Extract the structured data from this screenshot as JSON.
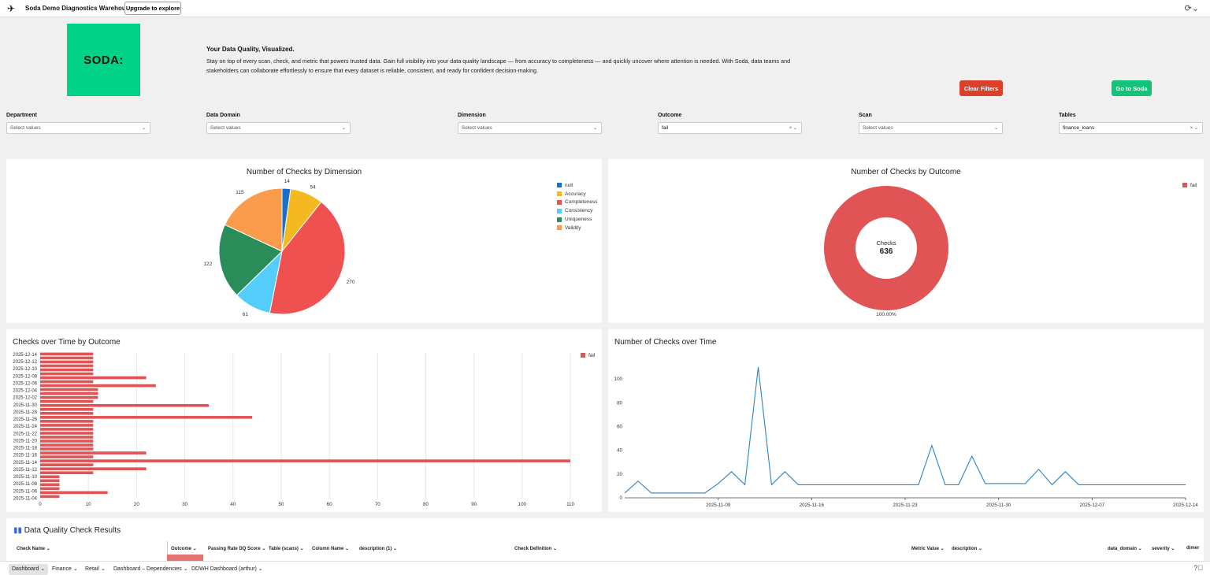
{
  "header": {
    "title": "Soda Demo Diagnostics Warehouse",
    "upgrade_label": "Upgrade to explore",
    "refresh_icon": "refresh-icon"
  },
  "intro": {
    "logo_text": "SODA:",
    "title": "Your Data Quality, Visualized.",
    "text": "Stay on top of every scan, check, and metric that powers trusted data. Gain full visibility into your data quality landscape — from accuracy to completeness — and quickly uncover where attention is needed. With Soda, data teams and stakeholders can collaborate effortlessly to ensure that every dataset is reliable, consistent, and ready for confident decision-making."
  },
  "buttons": {
    "clear_filters": "Clear Filters",
    "go_to_soda": "Go to Soda"
  },
  "filters": [
    {
      "label": "Department",
      "value": "Select values"
    },
    {
      "label": "Data Domain",
      "value": "Select values"
    },
    {
      "label": "Dimension",
      "value": "Select values"
    },
    {
      "label": "Outcome",
      "value": "fail"
    },
    {
      "label": "Scan",
      "value": "Select values"
    },
    {
      "label": "Tables",
      "value": "finance_loans"
    }
  ],
  "colors": {
    "fail": "#e05456",
    "line": "#2f84c2",
    "clear_button": "#d9412c",
    "soda_button": "#12c37a",
    "logo_bg": "#00d387"
  },
  "chart_data": [
    {
      "type": "pie",
      "title": "Number of Checks by Dimension",
      "categories": [
        "null",
        "Accuracy",
        "Completeness",
        "Consistency",
        "Uniqueness",
        "Validity"
      ],
      "values": [
        14,
        54,
        270,
        61,
        122,
        115
      ],
      "colors": [
        "#1a6fc9",
        "#f5b820",
        "#ee5150",
        "#55cdfb",
        "#2a8c59",
        "#fb9b4c"
      ],
      "legend": "top-right"
    },
    {
      "type": "pie",
      "title": "Number of Checks by Outcome",
      "categories": [
        "fail"
      ],
      "values": [
        636
      ],
      "center_label": "Checks",
      "center_value": "636",
      "slice_label": "100.00%",
      "legend": "top-right"
    },
    {
      "type": "bar",
      "title": "Checks over Time by Outcome",
      "orientation": "horizontal",
      "series": [
        {
          "name": "fail",
          "values": [
            11,
            11,
            11,
            11,
            11,
            11,
            22,
            11,
            24,
            12,
            12,
            12,
            11,
            35,
            11,
            11,
            44,
            11,
            11,
            11,
            11,
            11,
            11,
            11,
            11,
            22,
            11,
            110,
            11,
            22,
            11,
            4,
            4,
            4,
            4,
            14,
            4
          ]
        }
      ],
      "y_tick_labels": [
        "2025-12-14",
        "2025-12-12",
        "2025-12-10",
        "2025-12-08",
        "2025-12-06",
        "2025-12-04",
        "2025-12-02",
        "2025-11-30",
        "2025-11-28",
        "2025-11-26",
        "2025-11-24",
        "2025-11-22",
        "2025-11-20",
        "2025-11-18",
        "2025-11-16",
        "2025-11-14",
        "2025-11-12",
        "2025-11-10",
        "2025-11-08",
        "2025-11-06",
        "2025-11-04"
      ],
      "xlim": [
        0,
        110
      ],
      "xticks": [
        0,
        10,
        20,
        30,
        40,
        50,
        60,
        70,
        80,
        90,
        100,
        110
      ],
      "grid": true,
      "legend": "top-right"
    },
    {
      "type": "line",
      "title": "Number of Checks over Time",
      "x": [
        "2025-11-02",
        "2025-11-03",
        "2025-11-04",
        "2025-11-05",
        "2025-11-06",
        "2025-11-07",
        "2025-11-08",
        "2025-11-09",
        "2025-11-10",
        "2025-11-11",
        "2025-11-12",
        "2025-11-13",
        "2025-11-14",
        "2025-11-15",
        "2025-11-16",
        "2025-11-17",
        "2025-11-18",
        "2025-11-19",
        "2025-11-20",
        "2025-11-21",
        "2025-11-22",
        "2025-11-23",
        "2025-11-24",
        "2025-11-25",
        "2025-11-26",
        "2025-11-27",
        "2025-11-28",
        "2025-11-29",
        "2025-11-30",
        "2025-12-01",
        "2025-12-02",
        "2025-12-03",
        "2025-12-04",
        "2025-12-05",
        "2025-12-06",
        "2025-12-07",
        "2025-12-08",
        "2025-12-09",
        "2025-12-10",
        "2025-12-11",
        "2025-12-12",
        "2025-12-13",
        "2025-12-14"
      ],
      "y": [
        4,
        14,
        4,
        4,
        4,
        4,
        4,
        12,
        22,
        11,
        110,
        11,
        22,
        11,
        11,
        11,
        11,
        11,
        11,
        11,
        11,
        11,
        11,
        44,
        11,
        11,
        35,
        12,
        12,
        12,
        12,
        24,
        11,
        22,
        11,
        11,
        11,
        11,
        11,
        11,
        11,
        11,
        11
      ],
      "x_tick_labels": [
        "2025-11-09",
        "2025-11-16",
        "2025-11-23",
        "2025-11-30",
        "2025-12-07",
        "2025-12-14"
      ],
      "ylim": [
        0,
        110
      ],
      "yticks": [
        0,
        20,
        40,
        60,
        80,
        100
      ],
      "grid": false
    }
  ],
  "table": {
    "title": "Data Quality Check Results",
    "icon": "bar-chart-icon",
    "columns": [
      "Check Name",
      "Outcome",
      "Passing Rate DQ Score",
      "Table (scans)",
      "Column Name",
      "description (1)",
      "Check Definition",
      "Metric Value",
      "description",
      "data_domain",
      "severity",
      "dimer"
    ]
  },
  "tabs": [
    "Dashboard",
    "Finance",
    "Retail",
    "Dashboard – Dependencies",
    "DDWH Dashboard (arthur)"
  ]
}
